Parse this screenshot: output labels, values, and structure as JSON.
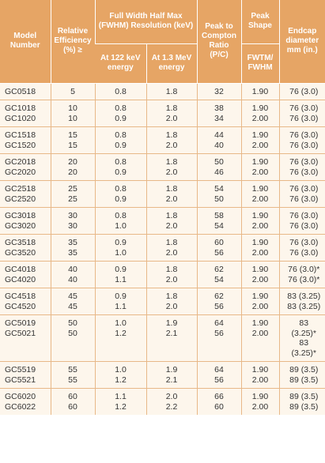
{
  "header": {
    "model": "Model Number",
    "efficiency": "Relative Efficiency (%) ≥",
    "fwhm": "Full Width Half Max (FWHM) Resolution (keV)",
    "kev122": "At 122 keV energy",
    "mev13": "At 1.3 MeV energy",
    "pc": "Peak to Compton Ratio (P/C)",
    "shape": "Peak Shape",
    "shape_sub": "FWTM/ FWHM",
    "endcap": "Endcap diameter mm (in.)"
  },
  "table": {
    "rows": [
      [
        [
          "GC0518"
        ],
        [
          "5"
        ],
        [
          "0.8"
        ],
        [
          "1.8"
        ],
        [
          "32"
        ],
        [
          "1.90"
        ],
        [
          "76 (3.0)"
        ]
      ],
      [
        [
          "GC1018",
          "GC1020"
        ],
        [
          "10",
          "10"
        ],
        [
          "0.8",
          "0.9"
        ],
        [
          "1.8",
          "2.0"
        ],
        [
          "38",
          "34"
        ],
        [
          "1.90",
          "2.00"
        ],
        [
          "76 (3.0)",
          "76 (3.0)"
        ]
      ],
      [
        [
          "GC1518",
          "GC1520"
        ],
        [
          "15",
          "15"
        ],
        [
          "0.8",
          "0.9"
        ],
        [
          "1.8",
          "2.0"
        ],
        [
          "44",
          "40"
        ],
        [
          "1.90",
          "2.00"
        ],
        [
          "76 (3.0)",
          "76 (3.0)"
        ]
      ],
      [
        [
          "GC2018",
          "GC2020"
        ],
        [
          "20",
          "20"
        ],
        [
          "0.8",
          "0.9"
        ],
        [
          "1.8",
          "2.0"
        ],
        [
          "50",
          "46"
        ],
        [
          "1.90",
          "2.00"
        ],
        [
          "76 (3.0)",
          "76 (3.0)"
        ]
      ],
      [
        [
          "GC2518",
          "GC2520"
        ],
        [
          "25",
          "25"
        ],
        [
          "0.8",
          "0.9"
        ],
        [
          "1.8",
          "2.0"
        ],
        [
          "54",
          "50"
        ],
        [
          "1.90",
          "2.00"
        ],
        [
          "76 (3.0)",
          "76 (3.0)"
        ]
      ],
      [
        [
          "GC3018",
          "GC3020"
        ],
        [
          "30",
          "30"
        ],
        [
          "0.8",
          "1.0"
        ],
        [
          "1.8",
          "2.0"
        ],
        [
          "58",
          "54"
        ],
        [
          "1.90",
          "2.00"
        ],
        [
          "76 (3.0)",
          "76 (3.0)"
        ]
      ],
      [
        [
          "GC3518",
          "GC3520"
        ],
        [
          "35",
          "35"
        ],
        [
          "0.9",
          "1.0"
        ],
        [
          "1.8",
          "2.0"
        ],
        [
          "60",
          "56"
        ],
        [
          "1.90",
          "2.00"
        ],
        [
          "76 (3.0)",
          "76 (3.0)"
        ]
      ],
      [
        [
          "GC4018",
          "GC4020"
        ],
        [
          "40",
          "40"
        ],
        [
          "0.9",
          "1.1"
        ],
        [
          "1.8",
          "2.0"
        ],
        [
          "62",
          "54"
        ],
        [
          "1.90",
          "2.00"
        ],
        [
          "76 (3.0)*",
          "76 (3.0)*"
        ]
      ],
      [
        [
          "GC4518",
          "GC4520"
        ],
        [
          "45",
          "45"
        ],
        [
          "0.9",
          "1.1"
        ],
        [
          "1.8",
          "2.0"
        ],
        [
          "62",
          "56"
        ],
        [
          "1.90",
          "2.00"
        ],
        [
          "83 (3.25)",
          "83 (3.25)"
        ]
      ],
      [
        [
          "GC5019",
          "GC5021"
        ],
        [
          "50",
          "50"
        ],
        [
          "1.0",
          "1.2"
        ],
        [
          "1.9",
          "2.1"
        ],
        [
          "64",
          "56"
        ],
        [
          "1.90",
          "2.00"
        ],
        [
          "83 (3.25)*",
          "83 (3.25)*"
        ]
      ],
      [
        [
          "GC5519",
          "GC5521"
        ],
        [
          "55",
          "55"
        ],
        [
          "1.0",
          "1.2"
        ],
        [
          "1.9",
          "2.1"
        ],
        [
          "64",
          "56"
        ],
        [
          "1.90",
          "2.00"
        ],
        [
          "89 (3.5)",
          "89 (3.5)"
        ]
      ],
      [
        [
          "GC6020",
          "GC6022"
        ],
        [
          "60",
          "60"
        ],
        [
          "1.1",
          "1.2"
        ],
        [
          "2.0",
          "2.2"
        ],
        [
          "66",
          "60"
        ],
        [
          "1.90",
          "2.00"
        ],
        [
          "89 (3.5)",
          "89 (3.5)"
        ]
      ]
    ]
  }
}
